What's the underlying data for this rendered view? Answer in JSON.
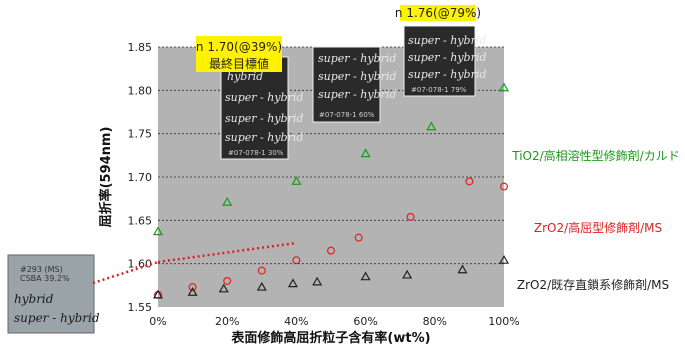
{
  "chart_data": {
    "type": "scatter",
    "xlabel": "表面修飾高屈折粒子含有率(wt%)",
    "ylabel": "屈折率(594nm)",
    "xlim": [
      0,
      100
    ],
    "ylim": [
      1.55,
      1.85
    ],
    "x_ticks": [
      "0%",
      "20%",
      "40%",
      "60%",
      "80%",
      "100%"
    ],
    "y_ticks": [
      "1.55",
      "1.60",
      "1.65",
      "1.70",
      "1.75",
      "1.80",
      "1.85"
    ],
    "grid": "horizontal dashed",
    "background": "#b3b3b3",
    "series": [
      {
        "name": "TiO2/高相溶性型修飾剤/カルド",
        "marker": "triangle-open",
        "color": "#1a9a1a",
        "points": [
          {
            "x": 0,
            "y": 1.637
          },
          {
            "x": 20,
            "y": 1.671
          },
          {
            "x": 40,
            "y": 1.695
          },
          {
            "x": 60,
            "y": 1.727
          },
          {
            "x": 79,
            "y": 1.758
          },
          {
            "x": 100,
            "y": 1.803
          }
        ]
      },
      {
        "name": "ZrO2/高屈型修飾剤/MS",
        "marker": "circle-open",
        "color": "#e02020",
        "points": [
          {
            "x": 0,
            "y": 1.564
          },
          {
            "x": 10,
            "y": 1.573
          },
          {
            "x": 20,
            "y": 1.58
          },
          {
            "x": 30,
            "y": 1.592
          },
          {
            "x": 40,
            "y": 1.604
          },
          {
            "x": 50,
            "y": 1.615
          },
          {
            "x": 58,
            "y": 1.63
          },
          {
            "x": 73,
            "y": 1.654
          },
          {
            "x": 90,
            "y": 1.695
          },
          {
            "x": 100,
            "y": 1.689
          }
        ]
      },
      {
        "name": "ZrO2/既存直鎖系修飾剤/MS",
        "marker": "triangle-open",
        "color": "#222222",
        "points": [
          {
            "x": 0,
            "y": 1.564
          },
          {
            "x": 10,
            "y": 1.567
          },
          {
            "x": 19,
            "y": 1.571
          },
          {
            "x": 30,
            "y": 1.573
          },
          {
            "x": 39,
            "y": 1.577
          },
          {
            "x": 46,
            "y": 1.579
          },
          {
            "x": 60,
            "y": 1.585
          },
          {
            "x": 72,
            "y": 1.587
          },
          {
            "x": 88,
            "y": 1.593
          },
          {
            "x": 100,
            "y": 1.604
          }
        ]
      }
    ],
    "annotations": {
      "callout_39": "n 1.70(@39%)\n最終目標値",
      "callout_79": "n 1.76(@79%)",
      "photo_text": "super - hybrid",
      "photo_text_short": "hybrid",
      "photo_ids": [
        "#07-078-1 30%",
        "#07-078-1 60%",
        "#07-078-1 79%"
      ],
      "inset_label": "#293 (MS)\nCSBA 39.2%"
    },
    "colors": {
      "callout_fill": "#fff200",
      "dotted_line": "#e02020",
      "photo_bg": "#2a2a2a"
    }
  }
}
